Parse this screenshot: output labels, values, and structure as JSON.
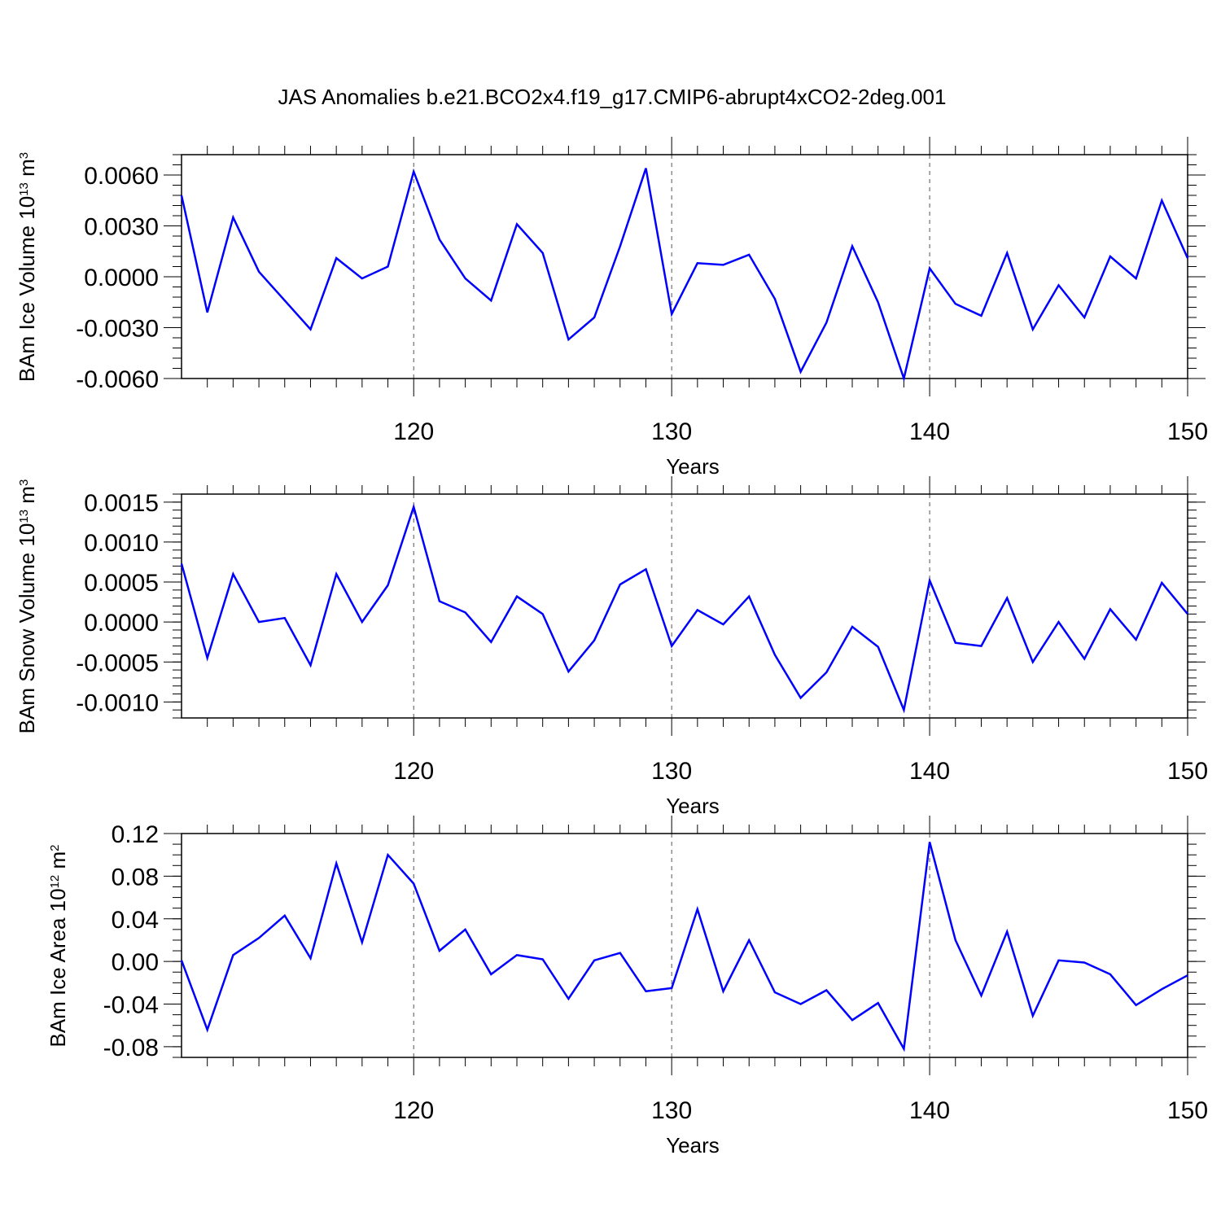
{
  "title": "JAS Anomalies b.e21.BCO2x4.f19_g17.CMIP6-abrupt4xCO2-2deg.001",
  "line_color": "#0000ff",
  "chart_data": [
    {
      "type": "line",
      "ylabel": "BAm Ice Volume 10",
      "ylabel_exp": "13",
      "ylabel_unit": " m",
      "ylabel_unit_exp": "3",
      "xlabel": "Years",
      "xlim": [
        111,
        150
      ],
      "ylim": [
        -0.006,
        0.0072
      ],
      "xticks": [
        120,
        130,
        140,
        150
      ],
      "xtick_labels": [
        "120",
        "130",
        "140",
        "150"
      ],
      "yticks": [
        -0.006,
        -0.003,
        0.0,
        0.003,
        0.006
      ],
      "ytick_labels": [
        "-0.0060",
        "-0.0030",
        "0.0000",
        "0.0030",
        "0.0060"
      ],
      "y_minor_step": 0.0006,
      "grid": "dashed vertical at x major ticks",
      "series": [
        {
          "x": [
            111,
            112,
            113,
            114,
            115,
            116,
            117,
            118,
            119,
            120,
            121,
            122,
            123,
            124,
            125,
            126,
            127,
            128,
            129,
            130,
            131,
            132,
            133,
            134,
            135,
            136,
            137,
            138,
            139,
            140,
            141,
            142,
            143,
            144,
            145,
            146,
            147,
            148,
            149,
            150
          ],
          "values": [
            0.0048,
            -0.0021,
            0.0035,
            0.0003,
            -0.0014,
            -0.0031,
            0.0011,
            -0.0001,
            0.0006,
            0.0062,
            0.0022,
            -0.0001,
            -0.0014,
            0.0031,
            0.0014,
            -0.0037,
            -0.0024,
            0.0018,
            0.0064,
            -0.0022,
            0.0008,
            0.0007,
            0.0013,
            -0.0013,
            -0.0056,
            -0.0027,
            0.0018,
            -0.0015,
            -0.006,
            0.0005,
            -0.0016,
            -0.0023,
            0.0014,
            -0.0031,
            -0.0005,
            -0.0024,
            0.0012,
            -0.0001,
            0.0045,
            0.0011
          ]
        }
      ]
    },
    {
      "type": "line",
      "ylabel": "BAm Snow Volume 10",
      "ylabel_exp": "13",
      "ylabel_unit": " m",
      "ylabel_unit_exp": "3",
      "xlabel": "Years",
      "xlim": [
        111,
        150
      ],
      "ylim": [
        -0.0012,
        0.0016
      ],
      "xticks": [
        120,
        130,
        140,
        150
      ],
      "xtick_labels": [
        "120",
        "130",
        "140",
        "150"
      ],
      "yticks": [
        -0.001,
        -0.0005,
        0.0,
        0.0005,
        0.001,
        0.0015
      ],
      "ytick_labels": [
        "-0.0010",
        "-0.0005",
        "0.0000",
        "0.0005",
        "0.0010",
        "0.0015"
      ],
      "y_minor_step": 0.0001,
      "grid": "dashed vertical at x major ticks",
      "series": [
        {
          "x": [
            111,
            112,
            113,
            114,
            115,
            116,
            117,
            118,
            119,
            120,
            121,
            122,
            123,
            124,
            125,
            126,
            127,
            128,
            129,
            130,
            131,
            132,
            133,
            134,
            135,
            136,
            137,
            138,
            139,
            140,
            141,
            142,
            143,
            144,
            145,
            146,
            147,
            148,
            149,
            150
          ],
          "values": [
            0.00073,
            -0.00045,
            0.0006,
            0.0,
            5e-05,
            -0.00054,
            0.0006,
            0.0,
            0.00046,
            0.00144,
            0.00026,
            0.00012,
            -0.00025,
            0.00032,
            0.0001,
            -0.00062,
            -0.00023,
            0.00047,
            0.00066,
            -0.0003,
            0.00015,
            -3e-05,
            0.00032,
            -0.00041,
            -0.00095,
            -0.00063,
            -6e-05,
            -0.00031,
            -0.0011,
            0.00052,
            -0.00026,
            -0.0003,
            0.0003,
            -0.0005,
            0.0,
            -0.00046,
            0.00016,
            -0.00022,
            0.00049,
            0.0001
          ]
        }
      ]
    },
    {
      "type": "line",
      "ylabel": "BAm Ice Area 10",
      "ylabel_exp": "12",
      "ylabel_unit": " m",
      "ylabel_unit_exp": "2",
      "xlabel": "Years",
      "xlim": [
        111,
        150
      ],
      "ylim": [
        -0.09,
        0.12
      ],
      "xticks": [
        120,
        130,
        140,
        150
      ],
      "xtick_labels": [
        "120",
        "130",
        "140",
        "150"
      ],
      "yticks": [
        -0.08,
        -0.04,
        0.0,
        0.04,
        0.08,
        0.12
      ],
      "ytick_labels": [
        "-0.08",
        "-0.04",
        "0.00",
        "0.04",
        "0.08",
        "0.12"
      ],
      "y_minor_step": 0.01,
      "grid": "dashed vertical at x major ticks",
      "series": [
        {
          "x": [
            111,
            112,
            113,
            114,
            115,
            116,
            117,
            118,
            119,
            120,
            121,
            122,
            123,
            124,
            125,
            126,
            127,
            128,
            129,
            130,
            131,
            132,
            133,
            134,
            135,
            136,
            137,
            138,
            139,
            140,
            141,
            142,
            143,
            144,
            145,
            146,
            147,
            148,
            149,
            150
          ],
          "values": [
            0.001,
            -0.064,
            0.006,
            0.022,
            0.043,
            0.003,
            0.092,
            0.018,
            0.1,
            0.073,
            0.01,
            0.03,
            -0.012,
            0.006,
            0.002,
            -0.035,
            0.001,
            0.008,
            -0.028,
            -0.025,
            0.049,
            -0.028,
            0.02,
            -0.029,
            -0.04,
            -0.027,
            -0.055,
            -0.039,
            -0.082,
            0.112,
            0.02,
            -0.032,
            0.028,
            -0.051,
            0.001,
            -0.001,
            -0.012,
            -0.041,
            -0.026,
            -0.013
          ]
        }
      ]
    }
  ]
}
